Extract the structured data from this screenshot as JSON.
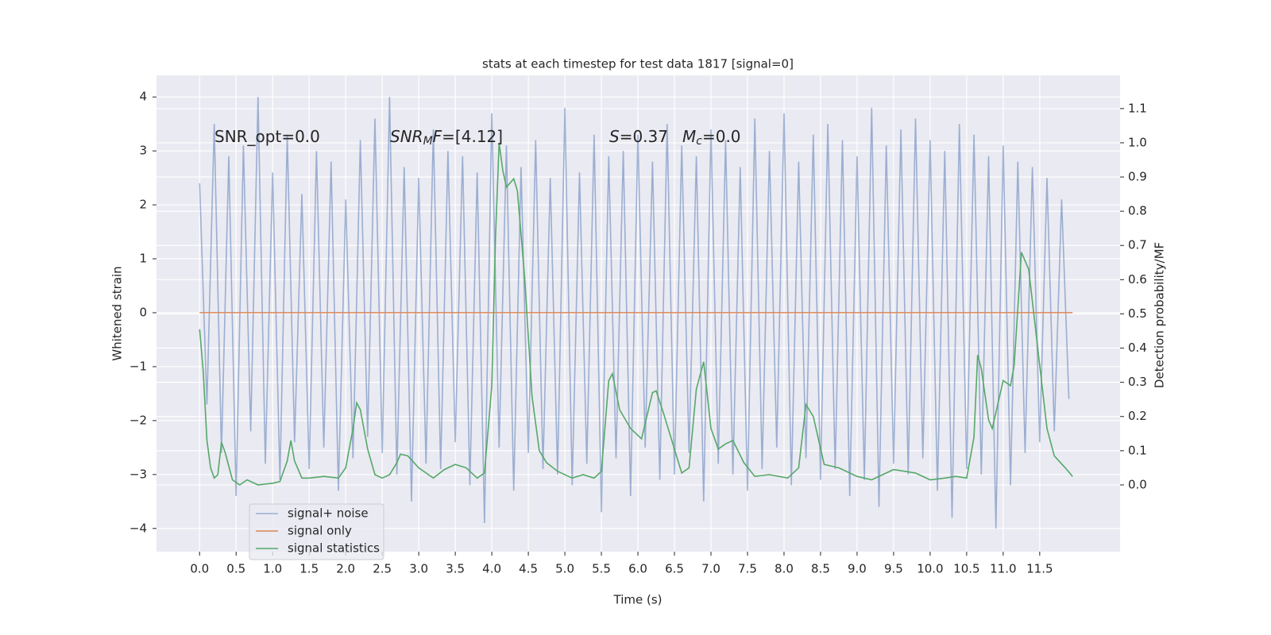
{
  "chart_data": {
    "type": "line",
    "title": "stats at each timestep for test data 1817 [signal=0]",
    "xlabel": "Time (s)",
    "ylabel": "Whitened strain",
    "y2label": "Detection probability/MF",
    "xlim": [
      -0.59,
      12.6
    ],
    "ylim": [
      -4.43,
      4.4
    ],
    "y2lim": [
      -0.195,
      1.197
    ],
    "xticks": [
      {
        "value": 0,
        "label": "0.0"
      },
      {
        "value": 0.5,
        "label": "0.5"
      },
      {
        "value": 1,
        "label": "1.0"
      },
      {
        "value": 1.5,
        "label": "1.5"
      },
      {
        "value": 2,
        "label": "2.0"
      },
      {
        "value": 2.5,
        "label": "2.5"
      },
      {
        "value": 3,
        "label": "3.0"
      },
      {
        "value": 3.5,
        "label": "3.5"
      },
      {
        "value": 4,
        "label": "4.0"
      },
      {
        "value": 4.5,
        "label": "4.5"
      },
      {
        "value": 5,
        "label": "5.0"
      },
      {
        "value": 5.5,
        "label": "5.5"
      },
      {
        "value": 6,
        "label": "6.0"
      },
      {
        "value": 6.5,
        "label": "6.5"
      },
      {
        "value": 7,
        "label": "7.0"
      },
      {
        "value": 7.5,
        "label": "7.5"
      },
      {
        "value": 8,
        "label": "8.0"
      },
      {
        "value": 8.5,
        "label": "8.5"
      },
      {
        "value": 9,
        "label": "9.0"
      },
      {
        "value": 9.5,
        "label": "9.5"
      },
      {
        "value": 10,
        "label": "10.0"
      },
      {
        "value": 10.5,
        "label": "10.5"
      },
      {
        "value": 11,
        "label": "11.0"
      },
      {
        "value": 11.5,
        "label": "11.5"
      }
    ],
    "yticks": [
      {
        "value": -4,
        "label": "−4"
      },
      {
        "value": -3,
        "label": "−3"
      },
      {
        "value": -2,
        "label": "−2"
      },
      {
        "value": -1,
        "label": "−1"
      },
      0,
      1,
      2,
      3,
      4
    ],
    "y2ticks": [
      {
        "value": 0,
        "label": "0.0"
      },
      {
        "value": 0.1,
        "label": "0.1"
      },
      {
        "value": 0.2,
        "label": "0.2"
      },
      {
        "value": 0.3,
        "label": "0.3"
      },
      {
        "value": 0.4,
        "label": "0.4"
      },
      {
        "value": 0.5,
        "label": "0.5"
      },
      {
        "value": 0.6,
        "label": "0.6"
      },
      {
        "value": 0.7,
        "label": "0.7"
      },
      {
        "value": 0.8,
        "label": "0.8"
      },
      {
        "value": 0.9,
        "label": "0.9"
      },
      {
        "value": 1,
        "label": "1.0"
      },
      {
        "value": 1.1,
        "label": "1.1"
      }
    ],
    "grid": true,
    "legend": "lower left",
    "annotations": [
      {
        "parts": [
          {
            "text": "SNR_opt=0.0"
          }
        ]
      },
      {
        "parts": [
          {
            "text": "SNR",
            "style": "italic"
          },
          {
            "text": "M",
            "style": "italic-sub"
          },
          {
            "text": "F",
            "style": "italic"
          },
          {
            "text": "=[4.12]"
          }
        ]
      },
      {
        "parts": [
          {
            "text": "S",
            "style": "italic"
          },
          {
            "text": "=0.37"
          }
        ]
      },
      {
        "parts": [
          {
            "text": "M",
            "style": "italic"
          },
          {
            "text": "c",
            "style": "italic-sub"
          },
          {
            "text": "=0.0"
          }
        ]
      }
    ],
    "series": [
      {
        "name": "signal+ noise",
        "color": "#4c72b0",
        "opacity": 0.5,
        "x": [
          0,
          0.1,
          0.2,
          0.3,
          0.4,
          0.5,
          0.6,
          0.7,
          0.8,
          0.9,
          1,
          1.1,
          1.2,
          1.3,
          1.4,
          1.5,
          1.6,
          1.7,
          1.8,
          1.9,
          2,
          2.1,
          2.2,
          2.3,
          2.4,
          2.5,
          2.6,
          2.7,
          2.8,
          2.9,
          3,
          3.1,
          3.2,
          3.3,
          3.4,
          3.5,
          3.6,
          3.7,
          3.8,
          3.9,
          4,
          4.1,
          4.2,
          4.3,
          4.4,
          4.5,
          4.6,
          4.7,
          4.8,
          4.9,
          5,
          5.1,
          5.2,
          5.3,
          5.4,
          5.5,
          5.6,
          5.7,
          5.8,
          5.9,
          6,
          6.1,
          6.2,
          6.3,
          6.4,
          6.5,
          6.6,
          6.7,
          6.8,
          6.9,
          7,
          7.1,
          7.2,
          7.3,
          7.4,
          7.5,
          7.6,
          7.7,
          7.8,
          7.9,
          8,
          8.1,
          8.2,
          8.3,
          8.4,
          8.5,
          8.6,
          8.7,
          8.8,
          8.9,
          9,
          9.1,
          9.2,
          9.3,
          9.4,
          9.5,
          9.6,
          9.7,
          9.8,
          9.9,
          10,
          10.1,
          10.2,
          10.3,
          10.4,
          10.5,
          10.6,
          10.7,
          10.8,
          10.9,
          11,
          11.1,
          11.2,
          11.3,
          11.4,
          11.5,
          11.6,
          11.7,
          11.8,
          11.9
        ],
        "values": [
          2.4,
          -1.7,
          3.5,
          -2.6,
          2.9,
          -3.4,
          3.1,
          -2.2,
          4.0,
          -2.8,
          2.6,
          -3.1,
          3.3,
          -2.4,
          2.2,
          -2.9,
          3.0,
          -2.5,
          2.8,
          -3.3,
          2.1,
          -2.7,
          3.2,
          -2.3,
          3.6,
          -2.6,
          4.0,
          -3.0,
          2.7,
          -3.5,
          2.5,
          -2.8,
          3.4,
          -2.9,
          3.0,
          -2.4,
          2.9,
          -3.2,
          2.6,
          -3.9,
          3.7,
          -2.5,
          3.1,
          -3.3,
          2.7,
          -2.6,
          3.2,
          -2.9,
          2.5,
          -3.0,
          3.8,
          -3.2,
          2.6,
          -2.8,
          3.3,
          -3.7,
          2.9,
          -2.7,
          3.0,
          -3.4,
          3.3,
          -2.5,
          2.8,
          -3.1,
          3.5,
          -3.0,
          3.1,
          -2.6,
          2.9,
          -3.5,
          3.4,
          -2.8,
          3.2,
          -3.0,
          2.7,
          -3.3,
          3.6,
          -2.9,
          3.0,
          -2.5,
          3.7,
          -3.2,
          2.8,
          -2.7,
          3.3,
          -3.1,
          3.5,
          -2.9,
          3.2,
          -3.4,
          2.9,
          -3.1,
          3.8,
          -3.6,
          3.1,
          -2.8,
          3.4,
          -3.0,
          3.6,
          -2.7,
          3.2,
          -3.3,
          3.0,
          -3.8,
          3.5,
          -2.9,
          3.3,
          -3.0,
          2.9,
          -4.0,
          3.1,
          -3.2,
          2.8,
          -2.6,
          2.7,
          -2.4,
          2.5,
          -2.2,
          2.1,
          -1.6
        ]
      },
      {
        "name": "signal only",
        "color": "#dd8452",
        "x": [
          0,
          11.95
        ],
        "values": [
          0,
          0
        ]
      },
      {
        "name": "signal statistics",
        "color": "#55a868",
        "axis": "y2",
        "x": [
          0,
          0.05,
          0.1,
          0.15,
          0.2,
          0.25,
          0.3,
          0.35,
          0.45,
          0.55,
          0.65,
          0.8,
          1.0,
          1.1,
          1.2,
          1.25,
          1.3,
          1.4,
          1.5,
          1.7,
          1.9,
          2.0,
          2.1,
          2.15,
          2.2,
          2.3,
          2.4,
          2.5,
          2.6,
          2.7,
          2.75,
          2.85,
          3.0,
          3.2,
          3.35,
          3.5,
          3.65,
          3.8,
          3.9,
          4.0,
          4.05,
          4.1,
          4.15,
          4.2,
          4.3,
          4.35,
          4.45,
          4.55,
          4.65,
          4.75,
          4.9,
          5.1,
          5.25,
          5.4,
          5.5,
          5.6,
          5.65,
          5.75,
          5.9,
          6.05,
          6.2,
          6.25,
          6.35,
          6.5,
          6.6,
          6.7,
          6.8,
          6.9,
          7.0,
          7.1,
          7.2,
          7.3,
          7.45,
          7.6,
          7.8,
          8.05,
          8.2,
          8.3,
          8.4,
          8.55,
          8.75,
          9.0,
          9.2,
          9.4,
          9.5,
          9.8,
          10.0,
          10.2,
          10.35,
          10.5,
          10.6,
          10.65,
          10.7,
          10.8,
          10.85,
          11.0,
          11.1,
          11.15,
          11.25,
          11.35,
          11.5,
          11.6,
          11.7,
          11.85,
          11.95
        ],
        "values": [
          0.455,
          0.33,
          0.13,
          0.05,
          0.02,
          0.03,
          0.125,
          0.095,
          0.015,
          0.0,
          0.015,
          0.0,
          0.005,
          0.01,
          0.07,
          0.13,
          0.07,
          0.02,
          0.02,
          0.025,
          0.02,
          0.05,
          0.165,
          0.24,
          0.22,
          0.105,
          0.03,
          0.02,
          0.03,
          0.065,
          0.09,
          0.085,
          0.05,
          0.02,
          0.045,
          0.06,
          0.05,
          0.02,
          0.035,
          0.29,
          0.72,
          1.0,
          0.92,
          0.87,
          0.895,
          0.86,
          0.605,
          0.26,
          0.1,
          0.065,
          0.04,
          0.02,
          0.03,
          0.02,
          0.04,
          0.305,
          0.325,
          0.22,
          0.165,
          0.135,
          0.27,
          0.275,
          0.21,
          0.105,
          0.035,
          0.05,
          0.28,
          0.36,
          0.165,
          0.105,
          0.12,
          0.13,
          0.065,
          0.025,
          0.03,
          0.02,
          0.05,
          0.235,
          0.2,
          0.06,
          0.05,
          0.025,
          0.015,
          0.035,
          0.045,
          0.035,
          0.015,
          0.02,
          0.025,
          0.02,
          0.14,
          0.38,
          0.34,
          0.19,
          0.165,
          0.305,
          0.29,
          0.35,
          0.68,
          0.63,
          0.35,
          0.165,
          0.085,
          0.05,
          0.025
        ]
      }
    ]
  }
}
